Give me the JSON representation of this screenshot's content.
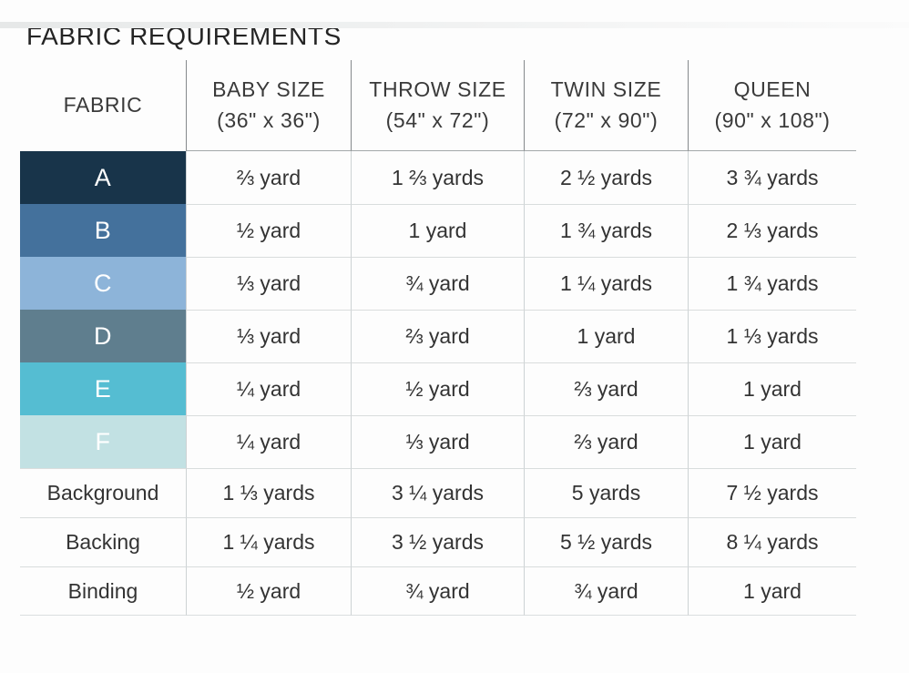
{
  "title": "FABRIC REQUIREMENTS",
  "table": {
    "columns": [
      {
        "label": "FABRIC",
        "sublabel": ""
      },
      {
        "label": "BABY SIZE",
        "sublabel": "(36\" x 36\")"
      },
      {
        "label": "THROW SIZE",
        "sublabel": "(54\" x 72\")"
      },
      {
        "label": "TWIN SIZE",
        "sublabel": "(72\" x 90\")"
      },
      {
        "label": "QUEEN",
        "sublabel": "(90\" x 108\")"
      }
    ],
    "rows": [
      {
        "fabric": "A",
        "swatch": "#18344a",
        "values": [
          "⅔ yard",
          "1 ⅔ yards",
          "2 ½ yards",
          "3 ¾ yards"
        ]
      },
      {
        "fabric": "B",
        "swatch": "#44719c",
        "values": [
          "½ yard",
          "1 yard",
          "1 ¾ yards",
          "2 ⅓ yards"
        ]
      },
      {
        "fabric": "C",
        "swatch": "#8db4d9",
        "values": [
          "⅓ yard",
          "¾ yard",
          "1 ¼ yards",
          "1 ¾ yards"
        ]
      },
      {
        "fabric": "D",
        "swatch": "#5f7e8e",
        "values": [
          "⅓ yard",
          "⅔ yard",
          "1 yard",
          "1 ⅓ yards"
        ]
      },
      {
        "fabric": "E",
        "swatch": "#55bdd2",
        "values": [
          "¼ yard",
          "½ yard",
          "⅔ yard",
          "1 yard"
        ]
      },
      {
        "fabric": "F",
        "swatch": "#c2e1e3",
        "values": [
          "¼ yard",
          "⅓ yard",
          "⅔ yard",
          "1 yard"
        ]
      },
      {
        "fabric": "Background",
        "swatch": null,
        "values": [
          "1 ⅓ yards",
          "3 ¼ yards",
          "5 yards",
          "7 ½ yards"
        ]
      },
      {
        "fabric": "Backing",
        "swatch": null,
        "values": [
          "1 ¼ yards",
          "3 ½ yards",
          "5 ½ yards",
          "8 ¼ yards"
        ]
      },
      {
        "fabric": "Binding",
        "swatch": null,
        "values": [
          "½ yard",
          "¾ yard",
          "¾ yard",
          "1 yard"
        ]
      }
    ]
  }
}
